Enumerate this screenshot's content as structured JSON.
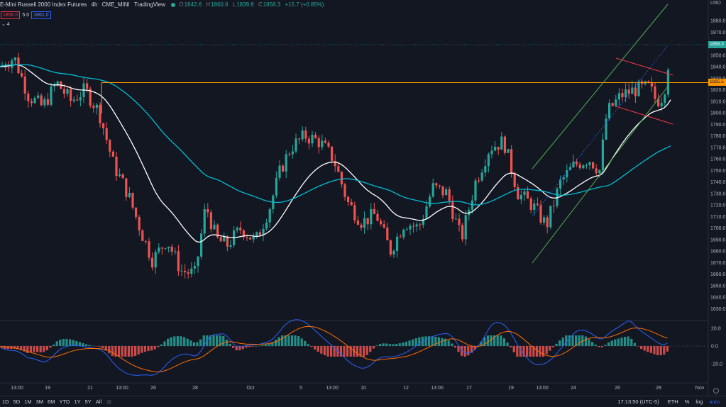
{
  "header": {
    "title": "E-Mini Russell 2000 Index Futures",
    "interval": "4h",
    "exchange": "CME_MINI",
    "source": "TradingView",
    "open_label": "O",
    "open": "1842.6",
    "high_label": "H",
    "high": "1860.6",
    "low_label": "L",
    "low": "1839.8",
    "close_label": "C",
    "close": "1858.3",
    "change": "+15.7 (+0.85%)"
  },
  "trade": {
    "sell": "1856.0",
    "spread": "5.0",
    "buy": "1861.0"
  },
  "indicators_toggle": "⌄ 4",
  "price_axis": {
    "currency": "USD",
    "ticks": [
      "1860.0",
      "1850.0",
      "1840.0",
      "1830.0",
      "1820.0",
      "1810.0",
      "1800.0",
      "1790.0",
      "1780.0",
      "1770.0",
      "1760.0",
      "1750.0",
      "1740.0",
      "1730.0",
      "1720.0",
      "1710.0",
      "1700.0",
      "1690.0",
      "1680.0",
      "1670.0",
      "1660.0",
      "1650.0",
      "1640.0",
      "1630.0"
    ],
    "top_tick": "1880.0",
    "second_tick": "1870.0",
    "last_price_tag": "1858.3",
    "level_tag": "1825.5"
  },
  "macd_axis": {
    "ticks": [
      "20.0",
      "0.0",
      "-20.0"
    ]
  },
  "time_axis": [
    "13:00",
    "19",
    "21",
    "13:00",
    "26",
    "28",
    "Oct",
    "5",
    "13:00",
    "10",
    "12",
    "13:00",
    "17",
    "19",
    "13:00",
    "24",
    "26",
    "28",
    "Nov"
  ],
  "bottom": {
    "timeframes": [
      "1D",
      "5D",
      "1M",
      "3M",
      "6M",
      "YTD",
      "1Y",
      "5Y",
      "All"
    ],
    "clock": "17:13:50 (UTC-5)",
    "session": "ETH",
    "pct": "%",
    "log": "log",
    "auto": "auto"
  },
  "colors": {
    "up": "#26a69a",
    "down": "#ef5350",
    "level": "#ff9800",
    "ema_fast": "#ffffff",
    "ema_slow": "#00bcd4",
    "channel": "#4caf50",
    "flag": "#f23645"
  }
}
